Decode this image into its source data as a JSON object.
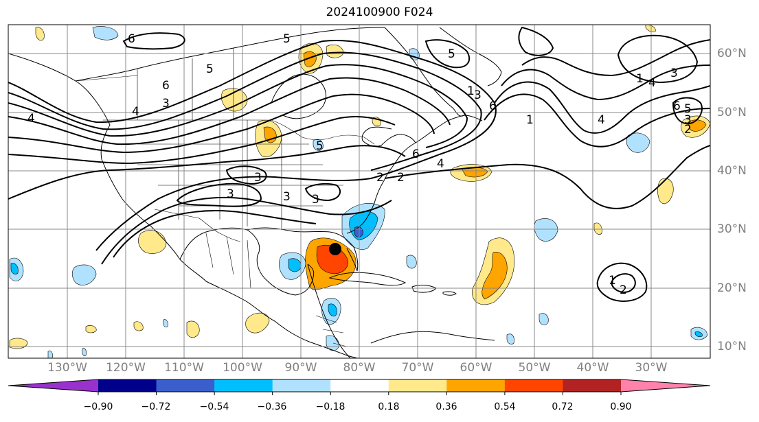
{
  "title": "2024100900 F024",
  "colors": {
    "land": "#000000",
    "grid": "#888888",
    "contour": "#000000",
    "storm_marker": "#000000"
  },
  "longitude_labels": [
    "130°W",
    "120°W",
    "110°W",
    "100°W",
    "90°W",
    "80°W",
    "70°W",
    "60°W",
    "50°W",
    "40°W",
    "30°W"
  ],
  "latitude_labels": [
    "60°N",
    "50°N",
    "40°N",
    "30°N",
    "20°N",
    "10°N"
  ],
  "colorbar": {
    "tick_labels": [
      "−0.90",
      "−0.72",
      "−0.54",
      "−0.36",
      "−0.18",
      "0.18",
      "0.36",
      "0.54",
      "0.72",
      "0.90"
    ],
    "colors": [
      "#9932cc",
      "#00008b",
      "#3a5fcd",
      "#00bfff",
      "#b0e2ff",
      "#ffffff",
      "#ffe98a",
      "#ffa500",
      "#ff4500",
      "#b22222",
      "#ff82ab"
    ]
  },
  "contour_labels": [
    "6",
    "5",
    "6",
    "3",
    "4",
    "4",
    "3",
    "3",
    "3",
    "5",
    "5",
    "6",
    "3",
    "6",
    "5",
    "4",
    "2",
    "2",
    "1",
    "1",
    "4",
    "6",
    "5",
    "4",
    "3",
    "1",
    "3",
    "3",
    "2",
    "1",
    "2"
  ],
  "storm_marker": {
    "lon": -84.5,
    "lat": 26.5
  }
}
